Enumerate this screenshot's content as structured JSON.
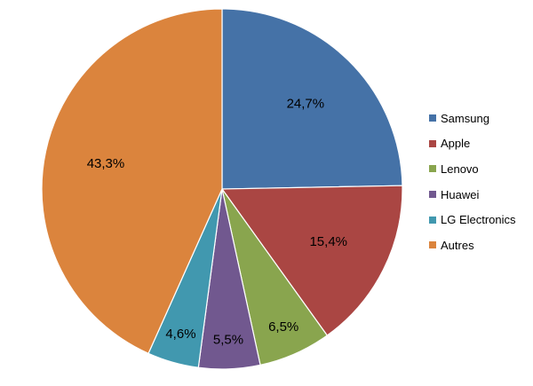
{
  "chart_data": {
    "type": "pie",
    "title": "",
    "start_angle_deg": 0,
    "direction": "clockwise",
    "legend_position": "right",
    "series": [
      {
        "name": "Samsung",
        "value": 24.7,
        "label": "24,7%",
        "color": "#4572A7"
      },
      {
        "name": "Apple",
        "value": 15.4,
        "label": "15,4%",
        "color": "#AA4643"
      },
      {
        "name": "Lenovo",
        "value": 6.5,
        "label": "6,5%",
        "color": "#89A54E"
      },
      {
        "name": "Huawei",
        "value": 5.5,
        "label": "5,5%",
        "color": "#71588F"
      },
      {
        "name": "LG Electronics",
        "value": 4.6,
        "label": "4,6%",
        "color": "#4198AF"
      },
      {
        "name": "Autres",
        "value": 43.3,
        "label": "43,3%",
        "color": "#DB843D"
      }
    ]
  }
}
